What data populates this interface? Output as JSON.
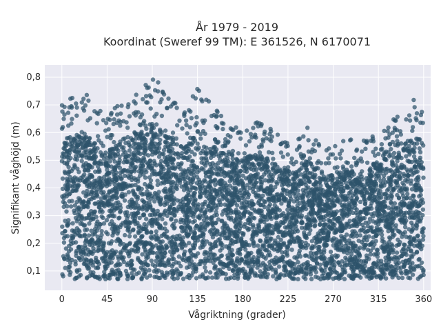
{
  "chart_data": {
    "type": "scatter",
    "title": [
      "År 1979 - 2019",
      "Koordinat (Sweref 99 TM): E 361526, N 6170071"
    ],
    "xlabel": "Vågriktning (grader)",
    "ylabel": "Signifikant våghöjd (m)",
    "xlim": [
      -17,
      367
    ],
    "ylim": [
      0.03,
      0.845
    ],
    "xticks": [
      0,
      45,
      90,
      135,
      180,
      225,
      270,
      315,
      360
    ],
    "xtick_labels": [
      "0",
      "45",
      "90",
      "135",
      "180",
      "225",
      "270",
      "315",
      "360"
    ],
    "yticks": [
      0.1,
      0.2,
      0.3,
      0.4,
      0.5,
      0.6,
      0.7,
      0.8
    ],
    "ytick_labels": [
      "0,1",
      "0,2",
      "0,3",
      "0,4",
      "0,5",
      "0,6",
      "0,7",
      "0,8"
    ],
    "grid": true,
    "background": "#e9e9f2",
    "marker_color": "#2e536b",
    "x_range": [
      0,
      360
    ],
    "y_min": 0.07,
    "upper_envelope": [
      {
        "x": 0,
        "y": 0.72
      },
      {
        "x": 10,
        "y": 0.74
      },
      {
        "x": 20,
        "y": 0.76
      },
      {
        "x": 30,
        "y": 0.72
      },
      {
        "x": 40,
        "y": 0.67
      },
      {
        "x": 50,
        "y": 0.68
      },
      {
        "x": 60,
        "y": 0.72
      },
      {
        "x": 70,
        "y": 0.75
      },
      {
        "x": 80,
        "y": 0.77
      },
      {
        "x": 85,
        "y": 0.8
      },
      {
        "x": 95,
        "y": 0.79
      },
      {
        "x": 105,
        "y": 0.75
      },
      {
        "x": 115,
        "y": 0.7
      },
      {
        "x": 125,
        "y": 0.71
      },
      {
        "x": 135,
        "y": 0.76
      },
      {
        "x": 145,
        "y": 0.72
      },
      {
        "x": 155,
        "y": 0.68
      },
      {
        "x": 165,
        "y": 0.64
      },
      {
        "x": 175,
        "y": 0.62
      },
      {
        "x": 185,
        "y": 0.64
      },
      {
        "x": 195,
        "y": 0.64
      },
      {
        "x": 205,
        "y": 0.62
      },
      {
        "x": 215,
        "y": 0.6
      },
      {
        "x": 225,
        "y": 0.58
      },
      {
        "x": 235,
        "y": 0.58
      },
      {
        "x": 245,
        "y": 0.62
      },
      {
        "x": 255,
        "y": 0.57
      },
      {
        "x": 265,
        "y": 0.55
      },
      {
        "x": 275,
        "y": 0.56
      },
      {
        "x": 285,
        "y": 0.58
      },
      {
        "x": 295,
        "y": 0.56
      },
      {
        "x": 305,
        "y": 0.59
      },
      {
        "x": 315,
        "y": 0.62
      },
      {
        "x": 325,
        "y": 0.64
      },
      {
        "x": 335,
        "y": 0.66
      },
      {
        "x": 345,
        "y": 0.72
      },
      {
        "x": 355,
        "y": 0.73
      },
      {
        "x": 360,
        "y": 0.73
      }
    ]
  }
}
